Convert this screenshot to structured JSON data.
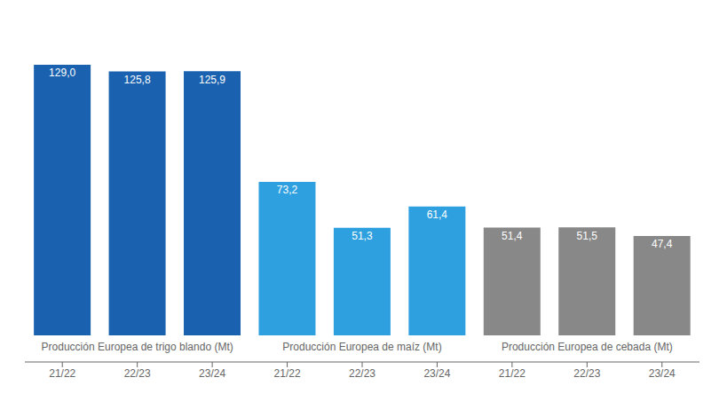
{
  "chart_data": {
    "type": "bar",
    "categories": [
      "21/22",
      "22/23",
      "23/24",
      "21/22",
      "22/23",
      "23/24",
      "21/22",
      "22/23",
      "23/24"
    ],
    "values": [
      129.0,
      125.8,
      125.9,
      73.2,
      51.3,
      61.4,
      51.4,
      51.5,
      47.4
    ],
    "value_labels": [
      "129,0",
      "125,8",
      "125,9",
      "73,2",
      "51,3",
      "61,4",
      "51,4",
      "51,5",
      "47,4"
    ],
    "colors": [
      "#1a62b0",
      "#1a62b0",
      "#1a62b0",
      "#2ea0e0",
      "#2ea0e0",
      "#2ea0e0",
      "#888888",
      "#888888",
      "#888888"
    ],
    "group_labels": [
      "Producción Europea de trigo blando (Mt)",
      "Producción Europea de maíz (Mt)",
      "Producción Europea de cebada (Mt)"
    ],
    "ylim": [
      0,
      148
    ],
    "data_labels": true,
    "tick_labels": "x",
    "grid": false
  }
}
